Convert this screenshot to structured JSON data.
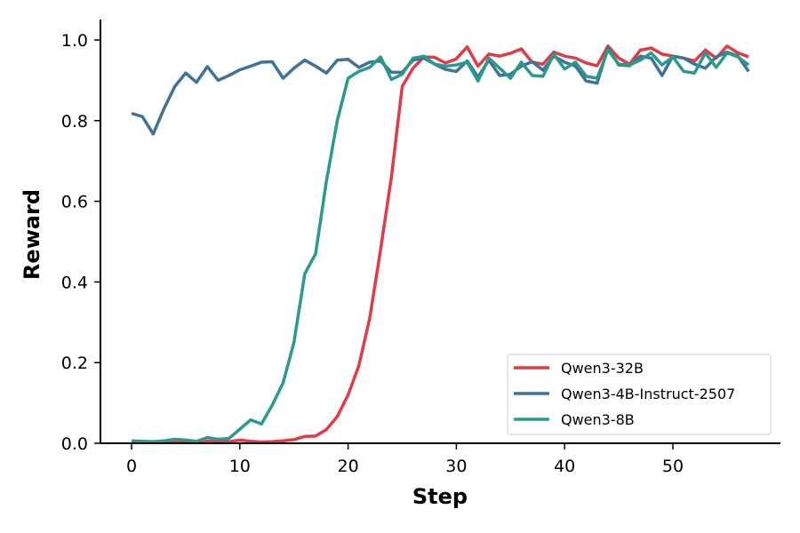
{
  "chart_data": {
    "type": "line",
    "title": "",
    "xlabel": "Step",
    "ylabel": "Reward",
    "xlim": [
      -3,
      60
    ],
    "ylim": [
      0,
      1.05
    ],
    "xticks": [
      0,
      10,
      20,
      30,
      40,
      50
    ],
    "yticks": [
      0.0,
      0.2,
      0.4,
      0.6,
      0.8,
      1.0
    ],
    "x_tick_labels": [
      "0",
      "10",
      "20",
      "30",
      "40",
      "50"
    ],
    "y_tick_labels": [
      "0.0",
      "0.2",
      "0.4",
      "0.6",
      "0.8",
      "1.0"
    ],
    "grid": false,
    "legend_position": "lower-right",
    "x": [
      0,
      1,
      2,
      3,
      4,
      5,
      6,
      7,
      8,
      9,
      10,
      11,
      12,
      13,
      14,
      15,
      16,
      17,
      18,
      19,
      20,
      21,
      22,
      23,
      24,
      25,
      26,
      27,
      28,
      29,
      30,
      31,
      32,
      33,
      34,
      35,
      36,
      37,
      38,
      39,
      40,
      41,
      42,
      43,
      44,
      45,
      46,
      47,
      48,
      49,
      50,
      51,
      52,
      53,
      54,
      55,
      56,
      57
    ],
    "series": [
      {
        "name": "Qwen3-32B",
        "color": "#e03c48",
        "values": [
          0.005,
          0.004,
          0.003,
          0.004,
          0.005,
          0.004,
          0.003,
          0.005,
          0.004,
          0.004,
          0.008,
          0.005,
          0.003,
          0.004,
          0.006,
          0.009,
          0.017,
          0.018,
          0.034,
          0.066,
          0.12,
          0.193,
          0.31,
          0.48,
          0.66,
          0.885,
          0.93,
          0.958,
          0.957,
          0.943,
          0.953,
          0.983,
          0.935,
          0.965,
          0.96,
          0.967,
          0.978,
          0.945,
          0.94,
          0.97,
          0.96,
          0.955,
          0.943,
          0.936,
          0.985,
          0.955,
          0.94,
          0.975,
          0.98,
          0.965,
          0.96,
          0.955,
          0.948,
          0.975,
          0.955,
          0.985,
          0.968,
          0.958
        ]
      },
      {
        "name": "Qwen3-4B-Instruct-2507",
        "color": "#3e7399",
        "values": [
          0.818,
          0.81,
          0.767,
          0.83,
          0.885,
          0.918,
          0.895,
          0.934,
          0.9,
          0.912,
          0.926,
          0.935,
          0.945,
          0.946,
          0.905,
          0.93,
          0.95,
          0.935,
          0.918,
          0.95,
          0.952,
          0.932,
          0.945,
          0.948,
          0.92,
          0.92,
          0.95,
          0.955,
          0.94,
          0.927,
          0.922,
          0.948,
          0.908,
          0.95,
          0.912,
          0.915,
          0.935,
          0.946,
          0.925,
          0.96,
          0.945,
          0.935,
          0.898,
          0.893,
          0.98,
          0.938,
          0.936,
          0.96,
          0.955,
          0.912,
          0.96,
          0.955,
          0.94,
          0.93,
          0.958,
          0.97,
          0.96,
          0.922
        ]
      },
      {
        "name": "Qwen3-8B",
        "color": "#2a9a8c",
        "values": [
          0.006,
          0.005,
          0.004,
          0.006,
          0.01,
          0.008,
          0.005,
          0.014,
          0.01,
          0.012,
          0.035,
          0.058,
          0.048,
          0.095,
          0.15,
          0.25,
          0.42,
          0.47,
          0.65,
          0.8,
          0.905,
          0.922,
          0.932,
          0.958,
          0.902,
          0.915,
          0.955,
          0.96,
          0.94,
          0.935,
          0.938,
          0.945,
          0.898,
          0.955,
          0.93,
          0.905,
          0.945,
          0.912,
          0.91,
          0.965,
          0.928,
          0.945,
          0.91,
          0.905,
          0.975,
          0.94,
          0.938,
          0.95,
          0.968,
          0.938,
          0.958,
          0.922,
          0.918,
          0.968,
          0.932,
          0.968,
          0.958,
          0.938
        ]
      }
    ]
  }
}
